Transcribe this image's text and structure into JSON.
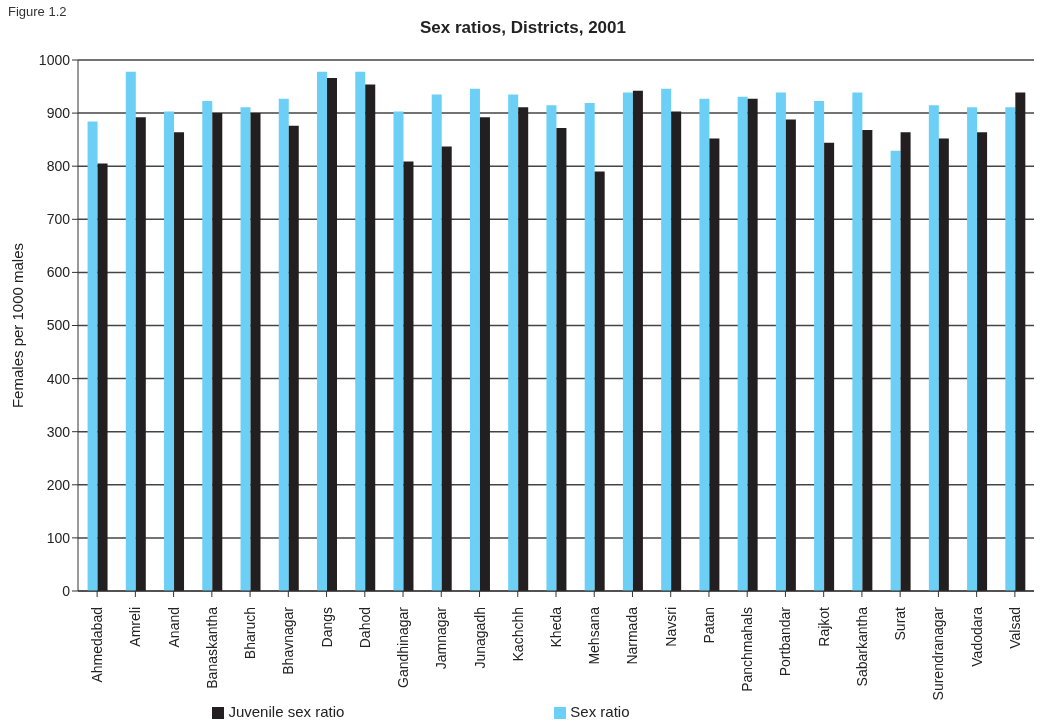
{
  "chart_data": {
    "type": "bar",
    "title": "Sex ratios, Districts, 2001",
    "ylabel": "Females per 1000 males",
    "annotations": [
      "Figure 1.2"
    ],
    "categories": [
      "Ahmedabad",
      "Amreli",
      "Anand",
      "Banaskantha",
      "Bharuch",
      "Bhavnagar",
      "Dangs",
      "Dahod",
      "Gandhinagar",
      "Jamnagar",
      "Junagadh",
      "Kachchh",
      "Kheda",
      "Mehsana",
      "Narmada",
      "Navsri",
      "Patan",
      "Panchmahals",
      "Portbandar",
      "Rajkot",
      "Sabarkantha",
      "Surat",
      "Surendranagar",
      "Vadodara",
      "Valsad"
    ],
    "series": [
      {
        "name": "Sex ratio",
        "color": "#6ccff6",
        "values": [
          884,
          978,
          903,
          923,
          911,
          927,
          978,
          978,
          903,
          935,
          946,
          935,
          915,
          919,
          939,
          946,
          927,
          931,
          939,
          923,
          939,
          829,
          915,
          911,
          911
        ]
      },
      {
        "name": "Juvenile sex ratio",
        "color": "#231f20",
        "values": [
          805,
          892,
          864,
          900,
          900,
          876,
          966,
          954,
          809,
          837,
          892,
          911,
          872,
          790,
          942,
          903,
          852,
          927,
          888,
          844,
          868,
          864,
          852,
          864,
          939
        ]
      }
    ],
    "ylim": [
      0,
      1000
    ],
    "yticks": [
      0,
      100,
      200,
      300,
      400,
      500,
      600,
      700,
      800,
      900,
      1000
    ],
    "grid": "y",
    "legend": "bottom"
  }
}
